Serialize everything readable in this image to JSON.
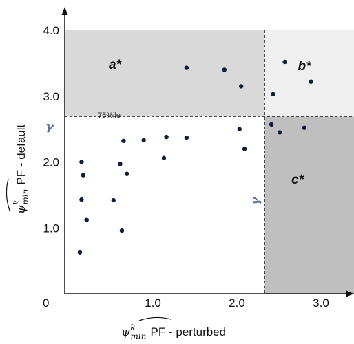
{
  "chart_data": {
    "type": "scatter",
    "xlabel": {
      "symbol": "ψ",
      "superscript": "k",
      "subscript": "min",
      "text": "PF - perturbed"
    },
    "ylabel": {
      "symbol": "ψ",
      "superscript": "k",
      "subscript": "min",
      "text": "PF - default"
    },
    "xlim": [
      0,
      3.5
    ],
    "ylim": [
      0,
      4.0
    ],
    "x_tick_labels": [
      "0",
      "1.0",
      "2.0",
      "3.0"
    ],
    "x_tick_values": [
      0,
      1.0,
      2.0,
      3.0
    ],
    "y_tick_labels": [
      "1.0",
      "2.0",
      "3.0",
      "4.0"
    ],
    "y_tick_values": [
      1.0,
      2.0,
      3.0,
      4.0
    ],
    "gamma_label": "γ",
    "gamma_x_label": "γ",
    "percentile_label": "75%ile",
    "thresholds": {
      "x": 2.38,
      "y": 2.69
    },
    "regions": [
      {
        "label": "a*",
        "x_range": [
          0,
          2.38
        ],
        "y_range": [
          2.69,
          4.0
        ],
        "color": "#d9d9d9"
      },
      {
        "label": "b*",
        "x_range": [
          2.38,
          3.5
        ],
        "y_range": [
          2.69,
          4.0
        ],
        "color": "#efefef"
      },
      {
        "label": "c*",
        "x_range": [
          2.38,
          3.5
        ],
        "y_range": [
          0,
          2.69
        ],
        "color": "#bfbfbf"
      }
    ],
    "point_color": "#0f1e3c",
    "points": [
      {
        "x": 0.18,
        "y": 0.63
      },
      {
        "x": 0.2,
        "y": 2.0
      },
      {
        "x": 0.22,
        "y": 1.8
      },
      {
        "x": 0.2,
        "y": 1.43
      },
      {
        "x": 0.26,
        "y": 1.12
      },
      {
        "x": 0.58,
        "y": 1.42
      },
      {
        "x": 0.68,
        "y": 0.96
      },
      {
        "x": 0.66,
        "y": 1.97
      },
      {
        "x": 0.7,
        "y": 2.32
      },
      {
        "x": 0.74,
        "y": 1.82
      },
      {
        "x": 0.94,
        "y": 2.33
      },
      {
        "x": 1.18,
        "y": 2.06
      },
      {
        "x": 1.21,
        "y": 2.38
      },
      {
        "x": 1.45,
        "y": 2.37
      },
      {
        "x": 1.45,
        "y": 3.43
      },
      {
        "x": 1.9,
        "y": 3.4
      },
      {
        "x": 2.08,
        "y": 2.5
      },
      {
        "x": 2.1,
        "y": 3.15
      },
      {
        "x": 2.14,
        "y": 2.2
      },
      {
        "x": 2.46,
        "y": 2.57
      },
      {
        "x": 2.48,
        "y": 3.03
      },
      {
        "x": 2.56,
        "y": 2.45
      },
      {
        "x": 2.62,
        "y": 3.52
      },
      {
        "x": 2.85,
        "y": 2.52
      },
      {
        "x": 2.93,
        "y": 3.22
      }
    ]
  }
}
